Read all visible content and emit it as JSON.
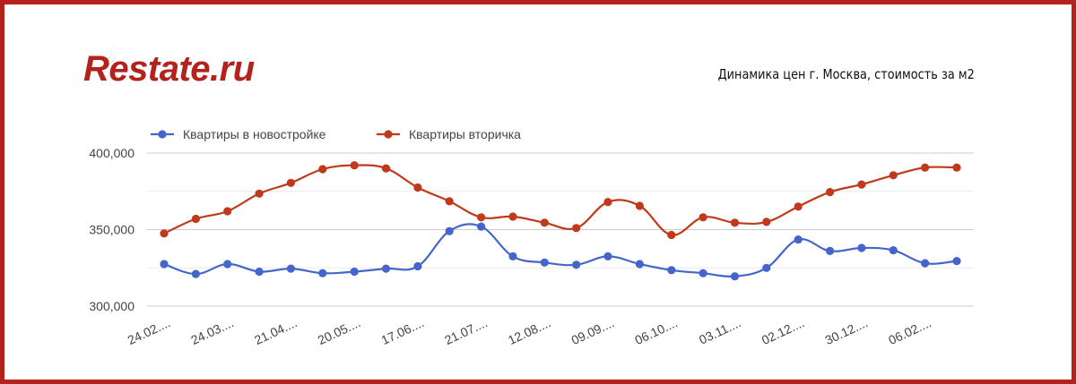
{
  "brand": {
    "logo_text": "Restate.ru"
  },
  "chart_data": {
    "type": "line",
    "title": "Динамика цен г. Москва, стоимость за м2",
    "xlabel": "",
    "ylabel": "",
    "ylim": [
      300000,
      400000
    ],
    "yticks": [
      300000,
      350000,
      400000
    ],
    "ytick_labels": [
      "300,000",
      "350,000",
      "400,000"
    ],
    "grid": true,
    "legend": "top-left",
    "x_tick_labels": [
      "24.02....",
      "24.03....",
      "21.04....",
      "20.05....",
      "17.06....",
      "21.07....",
      "12.08....",
      "09.09....",
      "06.10....",
      "03.11....",
      "02.12....",
      "30.12....",
      "06.02...."
    ],
    "series": [
      {
        "name": "Квартиры в новостройке",
        "color": "#4466cc",
        "values": [
          327500,
          321000,
          327500,
          322500,
          324500,
          321500,
          322500,
          324500,
          326000,
          349000,
          352000,
          332500,
          328500,
          327000,
          332500,
          327500,
          323500,
          321500,
          319500,
          325000,
          343500,
          336000,
          338000,
          336500,
          328000,
          329500
        ]
      },
      {
        "name": "Квартиры вторичка",
        "color": "#c0391b",
        "values": [
          347500,
          357000,
          362000,
          373500,
          380500,
          389500,
          392000,
          390000,
          377500,
          368500,
          358000,
          358500,
          354500,
          351000,
          368000,
          365500,
          346500,
          358000,
          354500,
          355000,
          365000,
          374500,
          379500,
          385500,
          390500,
          390500
        ]
      }
    ]
  }
}
